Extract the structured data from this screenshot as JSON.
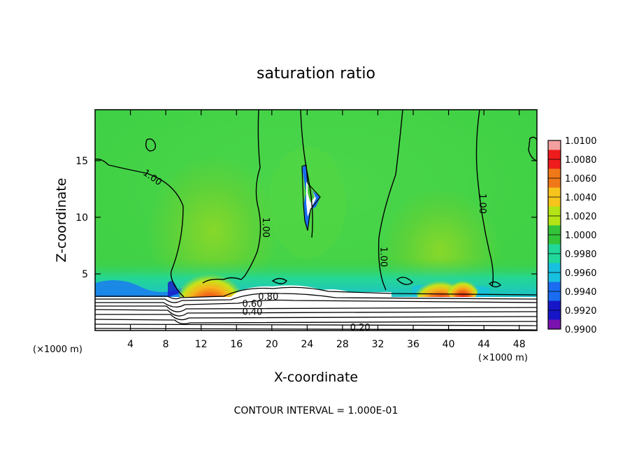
{
  "chart_data": {
    "type": "heatmap",
    "title": "saturation ratio",
    "xlabel": "X-coordinate",
    "ylabel": "Z-coordinate",
    "x_unit": "(×1000 m)",
    "y_unit": "(×1000 m)",
    "xlim": [
      0,
      50
    ],
    "ylim": [
      0,
      19.5
    ],
    "x_ticks": [
      4,
      8,
      12,
      16,
      20,
      24,
      28,
      32,
      36,
      40,
      44,
      48
    ],
    "y_ticks": [
      5,
      10,
      15
    ],
    "colorbar": {
      "levels": [
        1.01,
        1.008,
        1.006,
        1.004,
        1.002,
        1.0,
        0.998,
        0.996,
        0.994,
        0.992,
        0.99
      ],
      "labels": [
        "1.0100",
        "1.0080",
        "1.0060",
        "1.0040",
        "1.0020",
        "1.0000",
        "0.9980",
        "0.9960",
        "0.9940",
        "0.9920",
        "0.9900"
      ],
      "colors": [
        "#f4a0a0",
        "#ee1c1c",
        "#f07818",
        "#f6c41c",
        "#b4e416",
        "#33c43a",
        "#20d89a",
        "#18c0e0",
        "#1a6cf0",
        "#1616c8",
        "#7a12b0"
      ]
    },
    "contour_labels": [
      {
        "text": "1.00",
        "x": 6.3,
        "z": 13.3
      },
      {
        "text": "1.00",
        "x": 19.0,
        "z": 9.1
      },
      {
        "text": "1.00",
        "x": 32.3,
        "z": 6.5
      },
      {
        "text": "1.00",
        "x": 43.5,
        "z": 11.2
      },
      {
        "text": "0.80",
        "x": 19.6,
        "z": 2.7
      },
      {
        "text": "0.60",
        "x": 17.8,
        "z": 2.1
      },
      {
        "text": "0.40",
        "x": 17.8,
        "z": 1.4
      },
      {
        "text": "0.20",
        "x": 30.0,
        "z": 0.0
      }
    ],
    "grid": false,
    "legend": "right"
  },
  "footer": "CONTOUR INTERVAL = 1.000E-01"
}
